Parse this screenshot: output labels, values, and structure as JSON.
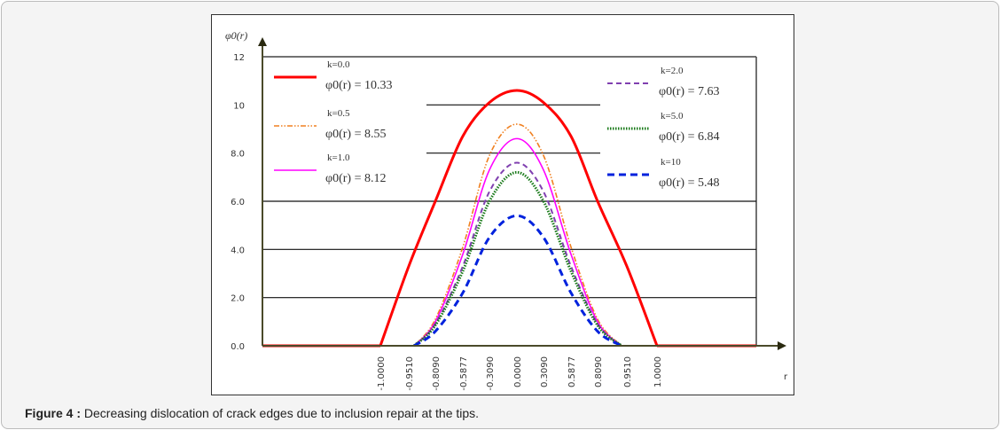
{
  "caption": {
    "label": "Figure 4 :",
    "text": " Decreasing dislocation of crack edges due to inclusion repair at the tips."
  },
  "chart_data": {
    "type": "line",
    "ylabel": "φ0(r)",
    "xlabel": "r",
    "x_ticks": [
      "-1.0000",
      "-0.9510",
      "-0.8090",
      "-0.5877",
      "-0.3090",
      "0.0000",
      "0.3090",
      "0.5877",
      "0.8090",
      "0.9510",
      "1.0000"
    ],
    "y_ticks": [
      "0.0",
      "2.0",
      "4.0",
      "6.0",
      "8.0",
      "10",
      "12"
    ],
    "ylim": [
      0,
      12
    ],
    "gridlines_full": [
      2,
      4,
      6
    ],
    "gridlines_partial": [
      8,
      10
    ],
    "legend_placement": "inside, left and right columns",
    "series": [
      {
        "name": "k=0.0",
        "formula": "φ0(r) = 10.33",
        "color": "#ff0000",
        "style": "solid-thick",
        "values": [
          0,
          3.3,
          6.0,
          8.7,
          10.1,
          10.6,
          10.1,
          8.7,
          6.0,
          3.3,
          0
        ]
      },
      {
        "name": "k=0.5",
        "formula": "φ0(r) = 8.55",
        "color": "#f08020",
        "style": "dash-dot-dot",
        "values": [
          0,
          0,
          1.1,
          4.1,
          7.9,
          9.2,
          7.9,
          4.1,
          1.1,
          0,
          0
        ]
      },
      {
        "name": "k=1.0",
        "formula": "φ0(r) = 8.12",
        "color": "#ff00ff",
        "style": "solid",
        "values": [
          0,
          0,
          1.0,
          3.8,
          7.3,
          8.6,
          7.3,
          3.8,
          1.0,
          0,
          0
        ]
      },
      {
        "name": "k=2.0",
        "formula": "φ0(r) = 7.63",
        "color": "#8040b0",
        "style": "dashed",
        "values": [
          0,
          0,
          0.9,
          3.3,
          6.4,
          7.6,
          6.4,
          3.3,
          0.9,
          0,
          0
        ]
      },
      {
        "name": "k=5.0",
        "formula": "φ0(r) = 6.84",
        "color": "#1a7a1a",
        "style": "dotted",
        "values": [
          0,
          0,
          0.85,
          3.1,
          6.0,
          7.2,
          6.0,
          3.1,
          0.85,
          0,
          0
        ]
      },
      {
        "name": "k=10",
        "formula": "φ0(r) = 5.48",
        "color": "#0022dd",
        "style": "dashed-thick",
        "values": [
          0,
          0,
          0.6,
          2.2,
          4.5,
          5.4,
          4.5,
          2.2,
          0.6,
          0,
          0
        ]
      }
    ]
  }
}
